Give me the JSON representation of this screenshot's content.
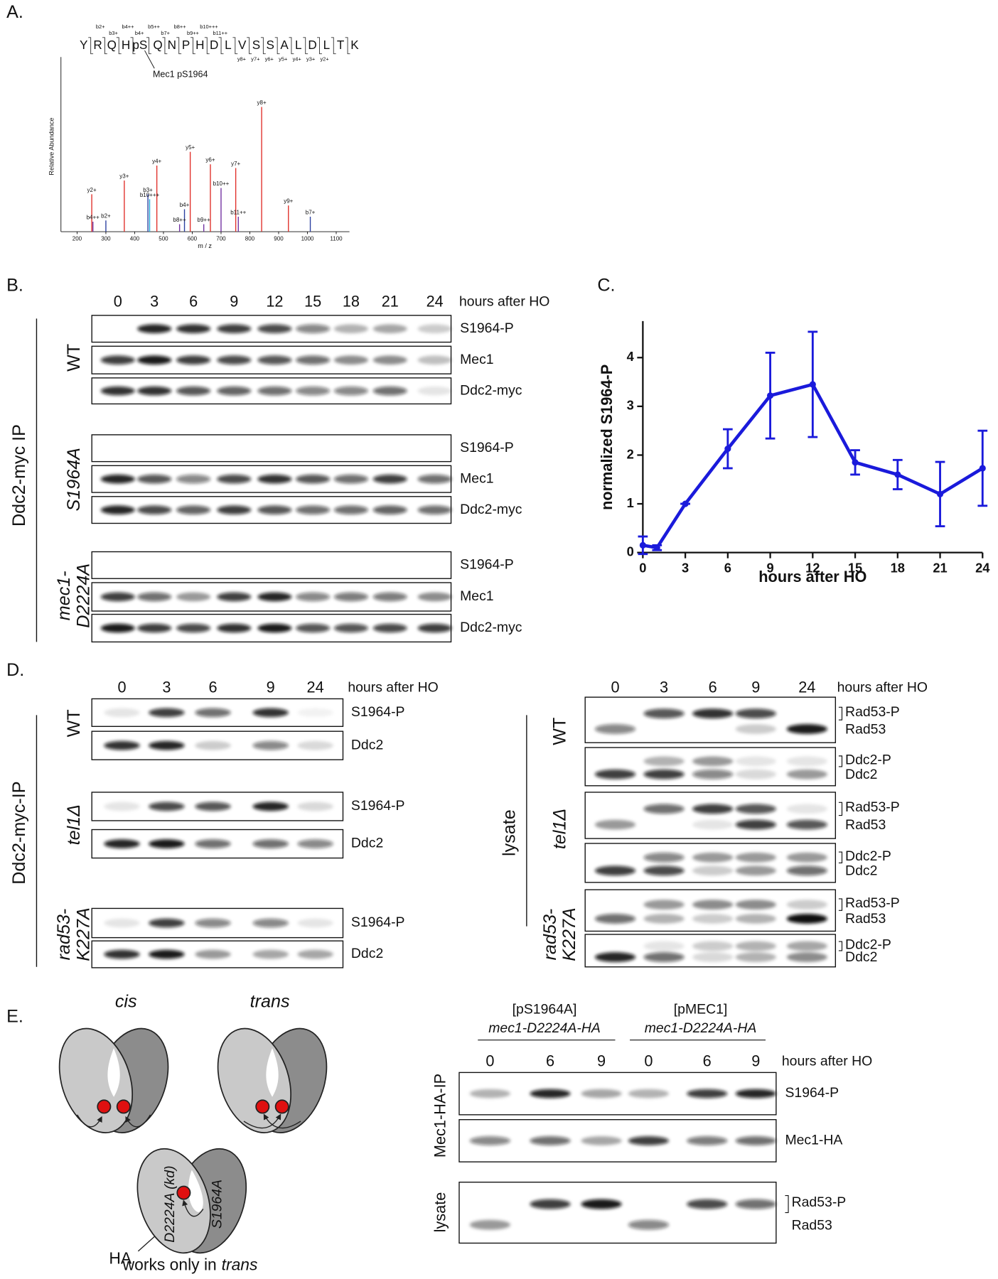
{
  "panel_labels": [
    "A.",
    "B.",
    "C.",
    "D.",
    "E."
  ],
  "chart_data": [
    {
      "type": "spectrum",
      "peptide": [
        "Y",
        "R",
        "Q",
        "H",
        "pS",
        "Q",
        "N",
        "P",
        "H",
        "D",
        "L",
        "V",
        "S",
        "S",
        "A",
        "L",
        "D",
        "L",
        "T",
        "K"
      ],
      "b_labels": [
        "b2+",
        "b3+",
        "b4++",
        "b4+",
        "b5++",
        "b7+",
        "b8++",
        "b9++",
        "b10+++",
        "b11++"
      ],
      "y_ion_labels": [
        "y8+",
        "y7+",
        "y6+",
        "y5+",
        "y4+",
        "y3+",
        "y2+"
      ],
      "site_label": "Mec1 pS1964",
      "y_label": "Relative Abundance",
      "x_label": "m / z",
      "xlim": [
        144,
        1146
      ],
      "ylim": [
        0,
        140
      ],
      "xticks": [
        200,
        300,
        400,
        500,
        600,
        700,
        800,
        900,
        1000,
        1100
      ],
      "peaks": {
        "labels": [
          "y2+",
          "y3+",
          "y4+",
          "y5+",
          "y6+",
          "y7+",
          "y8+",
          "y9+",
          "b3+",
          "b10+++",
          "b4++",
          "b2+",
          "b4+",
          "b8++",
          "b9++",
          "b10++",
          "b11++",
          "b7+"
        ],
        "x": [
          251,
          364,
          477,
          593,
          663,
          751,
          841,
          934,
          446,
          452,
          255,
          300,
          573,
          556,
          640,
          700,
          760,
          1010
        ],
        "values": [
          30,
          41,
          53,
          64,
          54,
          51,
          100,
          21,
          30,
          26,
          8,
          9,
          18,
          6,
          6,
          35,
          12,
          12
        ],
        "colors": [
          "#e0302a",
          "#e0302a",
          "#e0302a",
          "#e0302a",
          "#e0302a",
          "#e0302a",
          "#e0302a",
          "#e0302a",
          "#2b3fa0",
          "#21a8d8",
          "#7030a0",
          "#2b3fa0",
          "#2b3fa0",
          "#7030a0",
          "#7030a0",
          "#7030a0",
          "#7030a0",
          "#2b3fa0"
        ]
      }
    },
    {
      "type": "line",
      "x": [
        0,
        1,
        3,
        6,
        9,
        12,
        15,
        18,
        21,
        24
      ],
      "values": [
        0.15,
        0.1,
        1.0,
        2.13,
        3.22,
        3.45,
        1.85,
        1.6,
        1.2,
        1.73
      ],
      "errors": [
        0.18,
        0.05,
        0,
        0.4,
        0.88,
        1.08,
        0.25,
        0.3,
        0.66,
        0.77
      ],
      "color": "#1a1adb",
      "xlim": [
        0,
        24
      ],
      "ylim": [
        0,
        4.75
      ],
      "xticks": [
        0,
        3,
        6,
        9,
        12,
        15,
        18,
        21,
        24
      ],
      "yticks": [
        0,
        1,
        2,
        3,
        4
      ],
      "x_label": "hours after HO",
      "y_label": "normalized S1964-P"
    }
  ],
  "panel_b": {
    "timepoints": [
      "0",
      "3",
      "6",
      "9",
      "12",
      "15",
      "18",
      "21",
      "24"
    ],
    "unit": "hours after HO",
    "group_label": "Ddc2-myc IP",
    "strains": [
      {
        "name": [
          "WT"
        ],
        "rows": [
          "S1964-P",
          "Mec1",
          "Ddc2-myc"
        ]
      },
      {
        "name": [
          "S1964A"
        ],
        "rows": [
          "S1964-P",
          "Mec1",
          "Ddc2-myc"
        ]
      },
      {
        "name": [
          "mec1-",
          "D2224A"
        ],
        "rows": [
          "S1964-P",
          "Mec1",
          "Ddc2-myc"
        ]
      }
    ]
  },
  "panel_d_left": {
    "timepoints": [
      "0",
      "3",
      "6",
      "9",
      "24"
    ],
    "unit": "hours after HO",
    "group_label": "Ddc2-myc-IP",
    "strains": [
      {
        "name": [
          "WT"
        ],
        "rows": [
          "S1964-P",
          "Ddc2"
        ]
      },
      {
        "name": [
          "tel1Δ"
        ],
        "rows": [
          "S1964-P",
          "Ddc2"
        ]
      },
      {
        "name": [
          "rad53-",
          "K227A"
        ],
        "rows": [
          "S1964-P",
          "Ddc2"
        ]
      }
    ]
  },
  "panel_d_right": {
    "timepoints": [
      "0",
      "3",
      "6",
      "9",
      "24"
    ],
    "unit": "hours after HO",
    "group_label": "lysate",
    "strains": [
      {
        "name": [
          "WT"
        ],
        "rows": [
          [
            "Rad53-P",
            "Rad53"
          ],
          [
            "Ddc2-P",
            "Ddc2"
          ]
        ]
      },
      {
        "name": [
          "tel1Δ"
        ],
        "rows": [
          [
            "Rad53-P",
            "Rad53"
          ],
          [
            "Ddc2-P",
            "Ddc2"
          ]
        ]
      },
      {
        "name": [
          "rad53-",
          "K227A"
        ],
        "rows": [
          [
            "Rad53-P",
            "Rad53"
          ],
          [
            "Ddc2-P",
            "Ddc2"
          ]
        ]
      }
    ]
  },
  "panel_e": {
    "cartoon": {
      "cis": "cis",
      "trans": "trans",
      "kd_label": "D2224A (kd)",
      "site_label": "S1964A",
      "tag": "HA",
      "caption": [
        "works only in",
        "trans"
      ]
    },
    "headers": [
      {
        "plasmid": "[pS1964A]",
        "allele": "mec1-D2224A-HA"
      },
      {
        "plasmid": "[pMEC1]",
        "allele": "mec1-D2224A-HA"
      }
    ],
    "timepoints": [
      "0",
      "6",
      "9",
      "0",
      "6",
      "9"
    ],
    "unit": "hours after HO",
    "strains": [
      {
        "name": [
          "Mec1-HA-IP"
        ],
        "rows": [
          "S1964-P",
          "Mec1-HA"
        ]
      },
      {
        "name": [
          "lysate"
        ],
        "rows": [
          [
            "Rad53-P",
            "Rad53"
          ]
        ]
      }
    ]
  }
}
